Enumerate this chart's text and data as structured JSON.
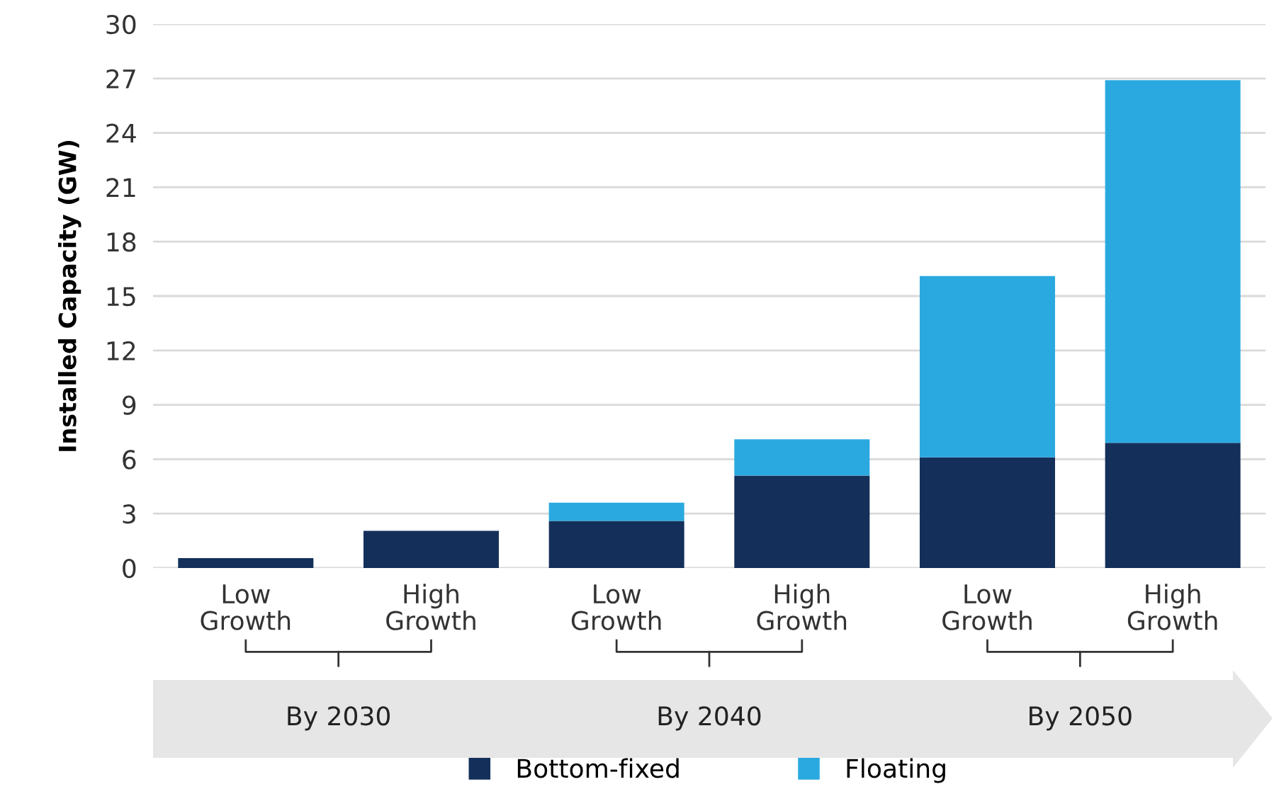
{
  "chart_data": {
    "type": "bar",
    "stacked": true,
    "ylabel": "Installed Capacity (GW)",
    "categories": [
      "Low\nGrowth",
      "High\nGrowth",
      "Low\nGrowth",
      "High\nGrowth",
      "Low\nGrowth",
      "High\nGrowth"
    ],
    "series": [
      {
        "name": "Bottom-fixed",
        "color": "#14305a",
        "values": [
          0.55,
          2.05,
          2.6,
          5.1,
          6.1,
          6.9
        ]
      },
      {
        "name": "Floating",
        "color": "#2aa9e0",
        "values": [
          0,
          0,
          1.0,
          2.0,
          10.0,
          20.0
        ]
      }
    ],
    "ylim": [
      0,
      30
    ],
    "yticks": [
      0,
      3,
      6,
      9,
      12,
      15,
      18,
      21,
      24,
      27,
      30
    ],
    "grid": "y",
    "legend": "bottom",
    "annotations": [
      "By 2030",
      "By 2040",
      "By 2050"
    ]
  }
}
